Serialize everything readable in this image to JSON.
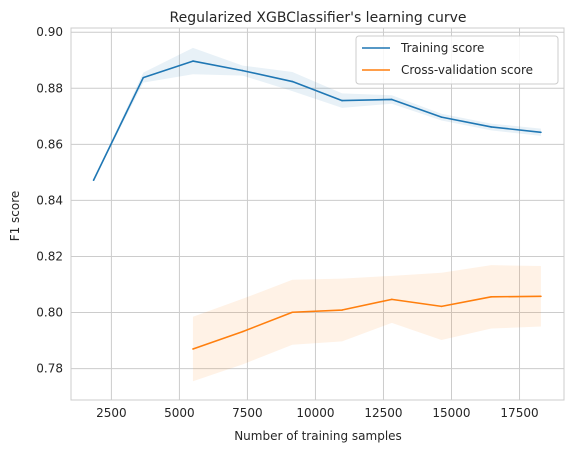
{
  "chart_data": {
    "type": "line",
    "title": "Regularized XGBClassifier's learning curve",
    "xlabel": "Number of training samples",
    "ylabel": "F1 score",
    "xlim": [
      1015,
      19135
    ],
    "ylim": [
      0.7688,
      0.9015
    ],
    "xticks": [
      2500,
      5000,
      7500,
      10000,
      12500,
      15000,
      17500
    ],
    "xtick_labels": [
      "2500",
      "5000",
      "7500",
      "10000",
      "12500",
      "15000",
      "17500"
    ],
    "yticks": [
      0.78,
      0.8,
      0.82,
      0.84,
      0.86,
      0.88,
      0.9
    ],
    "ytick_labels": [
      "0.78",
      "0.80",
      "0.82",
      "0.84",
      "0.86",
      "0.88",
      "0.90"
    ],
    "grid": true,
    "legend_position": "top-right",
    "series": [
      {
        "name": "Training score",
        "color": "#1f77b4",
        "band_color": "#1f77b4",
        "x": [
          1844,
          3671,
          5498,
          7325,
          9152,
          10979,
          12806,
          14633,
          16460,
          18287
        ],
        "y": [
          0.8472,
          0.8838,
          0.8897,
          0.8863,
          0.8824,
          0.8756,
          0.876,
          0.8697,
          0.8662,
          0.8643
        ],
        "y_lower": [
          0.847,
          0.882,
          0.885,
          0.8845,
          0.879,
          0.873,
          0.8745,
          0.8685,
          0.865,
          0.863
        ],
        "y_upper": [
          0.8474,
          0.8856,
          0.8944,
          0.8881,
          0.8858,
          0.8782,
          0.8775,
          0.8709,
          0.8674,
          0.8656
        ]
      },
      {
        "name": "Cross-validation score",
        "color": "#ff7f0e",
        "band_color": "#ff7f0e",
        "x": [
          5498,
          7325,
          9152,
          10979,
          12806,
          14633,
          16460,
          18287
        ],
        "y": [
          0.787,
          0.7932,
          0.8001,
          0.8009,
          0.8047,
          0.8022,
          0.8056,
          0.8058
        ],
        "y_lower": [
          0.7755,
          0.7815,
          0.7885,
          0.7897,
          0.7963,
          0.7902,
          0.7943,
          0.795
        ],
        "y_upper": [
          0.7985,
          0.8049,
          0.8117,
          0.8121,
          0.8131,
          0.8142,
          0.8169,
          0.8166
        ]
      }
    ]
  }
}
